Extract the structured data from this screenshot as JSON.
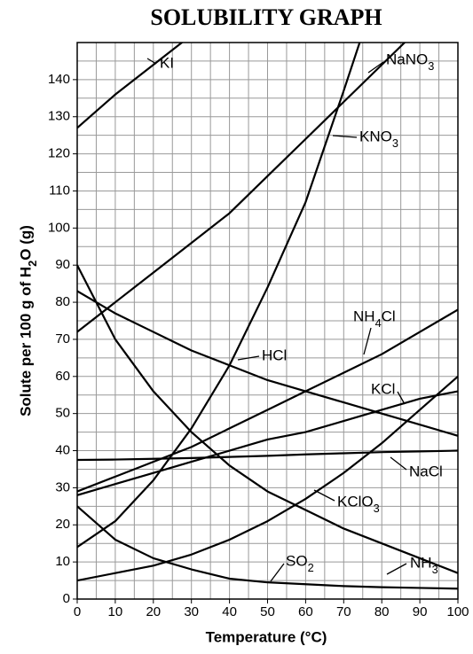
{
  "chart_data": {
    "type": "line",
    "title": "SOLUBILITY GRAPH",
    "x_label": "Temperature (°C)",
    "y_label": "Solute per 100 g of H2O (g)",
    "x": [
      0,
      10,
      20,
      30,
      40,
      50,
      60,
      70,
      80,
      90,
      100
    ],
    "xlim": [
      0,
      100
    ],
    "ylim": [
      0,
      150
    ],
    "xticks": [
      0,
      10,
      20,
      30,
      40,
      50,
      60,
      70,
      80,
      90,
      100
    ],
    "yticks": [
      0,
      10,
      20,
      30,
      40,
      50,
      60,
      70,
      80,
      90,
      100,
      110,
      120,
      130,
      140
    ],
    "x_minor_ticks": [
      5,
      15,
      25,
      35,
      45,
      55,
      65,
      75,
      85,
      95
    ],
    "y_minor_ticks": [
      5,
      15,
      25,
      35,
      45,
      55,
      65,
      75,
      85,
      95,
      105,
      115,
      125,
      135,
      145
    ],
    "grid": true,
    "series": [
      {
        "name": "KI",
        "color": "#000000",
        "values": [
          127,
          136,
          144,
          152,
          null,
          null,
          null,
          null,
          null,
          null,
          null
        ]
      },
      {
        "name": "NaNO3",
        "color": "#000000",
        "values": [
          72,
          80,
          88,
          96,
          104,
          114,
          124,
          134,
          144,
          154,
          null
        ]
      },
      {
        "name": "KNO3",
        "color": "#000000",
        "values": [
          14,
          21,
          32,
          46,
          63,
          84,
          107,
          137,
          168,
          null,
          null
        ]
      },
      {
        "name": "NH4Cl",
        "color": "#000000",
        "values": [
          29,
          33,
          37,
          41,
          46,
          51,
          56,
          61,
          66,
          72,
          78
        ]
      },
      {
        "name": "HCl",
        "color": "#000000",
        "values": [
          83,
          77,
          72,
          67,
          63,
          59,
          56,
          53,
          50,
          47,
          44
        ]
      },
      {
        "name": "KCl",
        "color": "#000000",
        "values": [
          28,
          31,
          34,
          37,
          40,
          43,
          45,
          48,
          51,
          54,
          56
        ]
      },
      {
        "name": "NaCl",
        "color": "#000000",
        "values": [
          37.5,
          37.6,
          37.8,
          38,
          38.3,
          38.6,
          39,
          39.3,
          39.6,
          39.8,
          40
        ]
      },
      {
        "name": "KClO3",
        "color": "#000000",
        "values": [
          5,
          7,
          9,
          12,
          16,
          21,
          27,
          34,
          42,
          51,
          60
        ]
      },
      {
        "name": "NH3",
        "color": "#000000",
        "values": [
          90,
          70,
          56,
          45,
          36,
          29,
          24,
          19,
          15,
          11,
          7
        ]
      },
      {
        "name": "SO2",
        "color": "#000000",
        "values": [
          25,
          16,
          11,
          8,
          5.5,
          4.5,
          4,
          3.5,
          3.2,
          3,
          2.8
        ]
      }
    ]
  }
}
